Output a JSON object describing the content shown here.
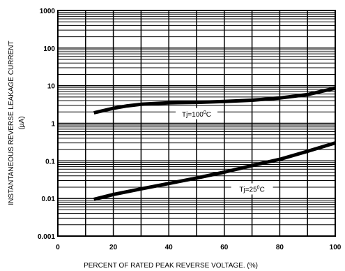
{
  "chart_data": {
    "type": "line",
    "xlabel": "PERCENT OF RATED PEAK REVERSE VOLTAGE. (%)",
    "ylabel_line1": "INSTANTANEOUS REVERSE LEAKAGE CURRENT",
    "ylabel_line2": "(µA)",
    "xlim": [
      0,
      100
    ],
    "ylim": [
      0.001,
      1000
    ],
    "yscale": "log",
    "grid": true,
    "x_ticks": [
      0,
      20,
      40,
      60,
      80,
      100
    ],
    "x_tick_labels": [
      "0",
      "20",
      "40",
      "60",
      "80",
      "100"
    ],
    "y_ticks": [
      0.001,
      0.01,
      0.1,
      1,
      10,
      100,
      1000
    ],
    "y_tick_labels": [
      "0.001",
      "0.01",
      "0.1",
      "1",
      "10",
      "100",
      "1000"
    ],
    "series": [
      {
        "name": "Tj=100°C",
        "label_text": "Tj=100",
        "label_sup": "0",
        "label_suffix": "C",
        "label_at": [
          50,
          1.8
        ],
        "x": [
          13,
          20,
          25,
          30,
          40,
          50,
          60,
          70,
          80,
          90,
          100
        ],
        "y": [
          1.9,
          2.5,
          2.9,
          3.2,
          3.5,
          3.6,
          3.8,
          4.1,
          4.7,
          5.8,
          8.6
        ]
      },
      {
        "name": "Tj=25°C",
        "label_text": "Tj=25",
        "label_sup": "0",
        "label_suffix": "C",
        "label_at": [
          70,
          0.018
        ],
        "x": [
          13,
          20,
          30,
          40,
          50,
          60,
          70,
          80,
          90,
          100
        ],
        "y": [
          0.0095,
          0.0128,
          0.018,
          0.025,
          0.035,
          0.05,
          0.075,
          0.11,
          0.18,
          0.3
        ]
      }
    ]
  }
}
